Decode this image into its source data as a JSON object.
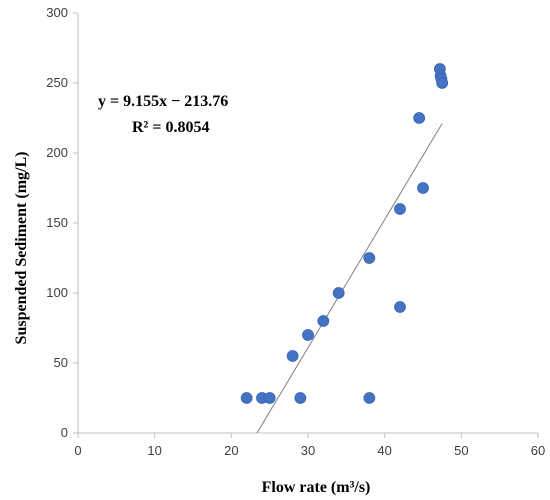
{
  "chart_data": {
    "type": "scatter",
    "title": "",
    "xlabel": "Flow rate (m³/s)",
    "ylabel": "Suspended Sediment (mg/L)",
    "xlim": [
      0,
      60
    ],
    "ylim": [
      0,
      300
    ],
    "xticks": [
      "0",
      "10",
      "20",
      "30",
      "40",
      "50",
      "60"
    ],
    "yticks": [
      "0",
      "50",
      "100",
      "150",
      "200",
      "250",
      "300"
    ],
    "grid": false,
    "legend": "none",
    "marker_color": "#4472C4",
    "trendline_color": "#808080",
    "points": [
      {
        "x": 22,
        "y": 25
      },
      {
        "x": 24,
        "y": 25
      },
      {
        "x": 25,
        "y": 25
      },
      {
        "x": 28,
        "y": 55
      },
      {
        "x": 29,
        "y": 25
      },
      {
        "x": 30,
        "y": 70
      },
      {
        "x": 32,
        "y": 80
      },
      {
        "x": 34,
        "y": 100
      },
      {
        "x": 38,
        "y": 125
      },
      {
        "x": 38,
        "y": 25
      },
      {
        "x": 42,
        "y": 160
      },
      {
        "x": 42,
        "y": 90
      },
      {
        "x": 44.5,
        "y": 225
      },
      {
        "x": 45,
        "y": 175
      },
      {
        "x": 47.2,
        "y": 260
      },
      {
        "x": 47.3,
        "y": 255
      },
      {
        "x": 47.4,
        "y": 253
      },
      {
        "x": 47.5,
        "y": 250
      }
    ],
    "trendline": {
      "slope": 9.155,
      "intercept": -213.76,
      "x_start": 23.35,
      "x_end": 47.5,
      "equation": "y = 9.155x − 213.76",
      "r_squared": "R² = 0.8054"
    }
  }
}
